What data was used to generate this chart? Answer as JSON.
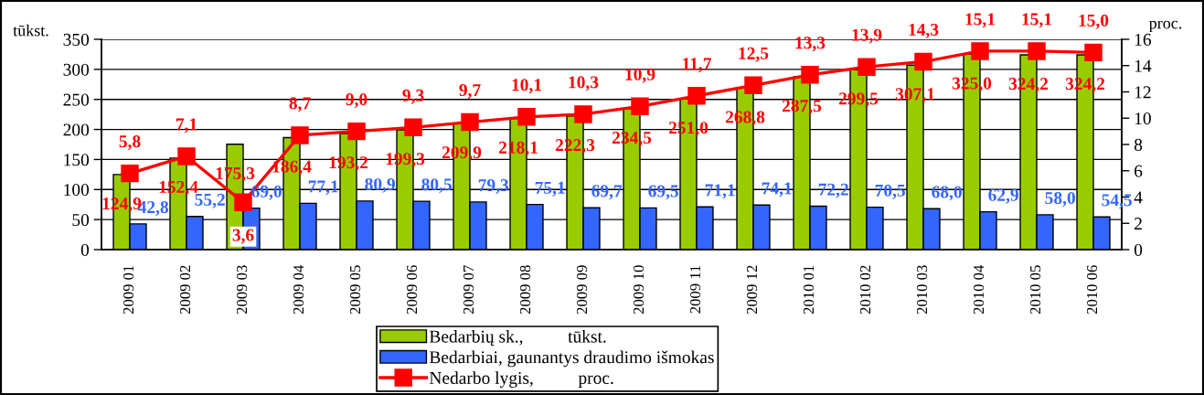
{
  "chart_data": {
    "type": "bar",
    "categories": [
      "2009 01",
      "2009 02",
      "2009 03",
      "2009 04",
      "2009 05",
      "2009 06",
      "2009 07",
      "2009 08",
      "2009 09",
      "2009 10",
      "2009 11",
      "2009 12",
      "2010 01",
      "2010 02",
      "2010 03",
      "2010 04",
      "2010 05",
      "2010 06"
    ],
    "ylabel": "tūkst.",
    "y2label": "proc.",
    "ylim": [
      0,
      350
    ],
    "yticks": [
      0,
      50,
      100,
      150,
      200,
      250,
      300,
      350
    ],
    "y2lim": [
      0,
      16
    ],
    "y2ticks": [
      0,
      2,
      4,
      6,
      8,
      10,
      12,
      14,
      16
    ],
    "grid": "y",
    "legend": "bottom",
    "series": [
      {
        "name": "Bedarbių sk.,          tūkst.",
        "color": "#99cc00",
        "values": [
          124.9,
          152.4,
          175.3,
          186.4,
          193.2,
          199.3,
          209.9,
          218.1,
          222.3,
          234.5,
          251.0,
          268.8,
          287.5,
          299.5,
          307.1,
          325.0,
          324.2,
          324.2
        ],
        "value_labels": [
          "124,9",
          "152,4",
          "175,3",
          "186,4",
          "193,2",
          "199,3",
          "209,9",
          "218,1",
          "222,3",
          "234,5",
          "251,0",
          "268,8",
          "287,5",
          "299,5",
          "307,1",
          "325,0",
          "324,2",
          "324,2"
        ]
      },
      {
        "name": "Bedarbiai, gaunantys draudimo išmokas",
        "color": "#3366ff",
        "values": [
          42.8,
          55.2,
          69.0,
          77.1,
          80.9,
          80.5,
          79.3,
          75.1,
          69.7,
          69.5,
          71.1,
          74.1,
          72.2,
          70.5,
          68.0,
          62.9,
          58.0,
          54.5
        ],
        "value_labels": [
          "42,8",
          "55,2",
          "69,0",
          "77,1",
          "80,9",
          "80,5",
          "79,3",
          "75,1",
          "69,7",
          "69,5",
          "71,1",
          "74,1",
          "72,2",
          "70,5",
          "68,0",
          "62,9",
          "58,0",
          "54,5"
        ]
      },
      {
        "name": "Nedarbo lygis,          proc.",
        "type": "line",
        "axis": "y2",
        "marker": "square",
        "color": "#ff0000",
        "values": [
          5.8,
          7.1,
          3.6,
          8.7,
          9.0,
          9.3,
          9.7,
          10.1,
          10.3,
          10.9,
          11.7,
          12.5,
          13.3,
          13.9,
          14.3,
          15.1,
          15.1,
          15.0
        ],
        "value_labels": [
          "5,8",
          "7,1",
          "3,6",
          "8,7",
          "9,0",
          "9,3",
          "9,7",
          "10,1",
          "10,3",
          "10,9",
          "11,7",
          "12,5",
          "13,3",
          "13,9",
          "14,3",
          "15,1",
          "15,1",
          "15,0"
        ]
      }
    ]
  }
}
